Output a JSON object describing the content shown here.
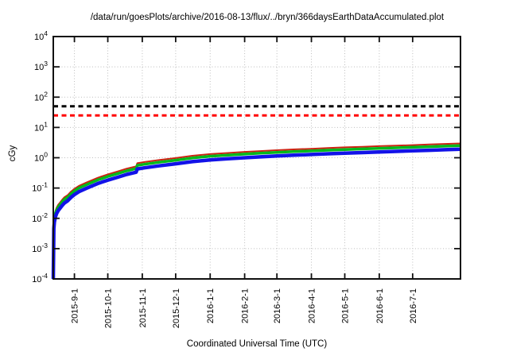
{
  "page": {
    "background": "#ffffff"
  },
  "chart_data": {
    "type": "line",
    "title": "/data/run/goesPlots/archive/2016-08-13/flux/../bryn/366daysEarthDataAccumulated.plot",
    "xlabel": "Coordinated Universal Time (UTC)",
    "ylabel": "cGy",
    "y_scale": "log",
    "ylim": [
      0.0001,
      10000
    ],
    "y_tick_exponents": [
      4,
      3,
      2,
      1,
      0,
      -1,
      -2,
      -3,
      -4
    ],
    "x_range_days": [
      0,
      366
    ],
    "x_ticks": [
      {
        "label": "2015-9-1",
        "day": 19
      },
      {
        "label": "2015-10-1",
        "day": 49
      },
      {
        "label": "2015-11-1",
        "day": 80
      },
      {
        "label": "2015-12-1",
        "day": 110
      },
      {
        "label": "2016-1-1",
        "day": 141
      },
      {
        "label": "2016-2-1",
        "day": 172
      },
      {
        "label": "2016-3-1",
        "day": 201
      },
      {
        "label": "2016-4-1",
        "day": 232
      },
      {
        "label": "2016-5-1",
        "day": 262
      },
      {
        "label": "2016-6-1",
        "day": 293
      },
      {
        "label": "2016-7-1",
        "day": 323
      }
    ],
    "grid": true,
    "legend": "none",
    "colors": {
      "grid": "#bdbdbd",
      "frame": "#111111",
      "threshold_black": "#000000",
      "threshold_red": "#ff0000",
      "series_red": "#cc2211",
      "series_green": "#00b81c",
      "series_blue": "#1212e8"
    },
    "thresholds": [
      {
        "name": "black-limit",
        "value": 50,
        "color": "#000000",
        "style": "dashed"
      },
      {
        "name": "red-limit",
        "value": 25,
        "color": "#ff0000",
        "style": "dashed"
      }
    ],
    "series": [
      {
        "name": "red",
        "color": "#cc2211",
        "points": [
          [
            0,
            0.00012
          ],
          [
            0.5,
            0.0071
          ],
          [
            1,
            0.0118
          ],
          [
            2,
            0.0177
          ],
          [
            3,
            0.0224
          ],
          [
            4.5,
            0.0283
          ],
          [
            6,
            0.033
          ],
          [
            8,
            0.0413
          ],
          [
            10,
            0.0496
          ],
          [
            13,
            0.059
          ],
          [
            16,
            0.0767
          ],
          [
            19,
            0.0944
          ],
          [
            23,
            0.118
          ],
          [
            30,
            0.153
          ],
          [
            40,
            0.218
          ],
          [
            49,
            0.283
          ],
          [
            58,
            0.354
          ],
          [
            66,
            0.437
          ],
          [
            74.5,
            0.519
          ],
          [
            75.5,
            0.661
          ],
          [
            82,
            0.72
          ],
          [
            95,
            0.838
          ],
          [
            110,
            0.979
          ],
          [
            125,
            1.16
          ],
          [
            141,
            1.32
          ],
          [
            157,
            1.44
          ],
          [
            172,
            1.56
          ],
          [
            186,
            1.66
          ],
          [
            201,
            1.77
          ],
          [
            216,
            1.88
          ],
          [
            232,
            1.98
          ],
          [
            247,
            2.09
          ],
          [
            262,
            2.2
          ],
          [
            278,
            2.3
          ],
          [
            293,
            2.41
          ],
          [
            308,
            2.51
          ],
          [
            323,
            2.62
          ],
          [
            338,
            2.74
          ],
          [
            352,
            2.86
          ],
          [
            366,
            2.97
          ]
        ]
      },
      {
        "name": "green",
        "color": "#00b81c",
        "points": [
          [
            0,
            0.0001
          ],
          [
            0.5,
            0.006
          ],
          [
            1,
            0.01
          ],
          [
            2,
            0.015
          ],
          [
            3,
            0.019
          ],
          [
            4.5,
            0.024
          ],
          [
            6,
            0.028
          ],
          [
            8,
            0.035
          ],
          [
            10,
            0.042
          ],
          [
            13,
            0.05
          ],
          [
            16,
            0.065
          ],
          [
            19,
            0.08
          ],
          [
            23,
            0.1
          ],
          [
            30,
            0.13
          ],
          [
            40,
            0.185
          ],
          [
            49,
            0.24
          ],
          [
            58,
            0.3
          ],
          [
            66,
            0.37
          ],
          [
            74.5,
            0.44
          ],
          [
            75.5,
            0.56
          ],
          [
            82,
            0.61
          ],
          [
            95,
            0.71
          ],
          [
            110,
            0.83
          ],
          [
            125,
            0.98
          ],
          [
            141,
            1.12
          ],
          [
            157,
            1.22
          ],
          [
            172,
            1.32
          ],
          [
            186,
            1.41
          ],
          [
            201,
            1.5
          ],
          [
            216,
            1.59
          ],
          [
            232,
            1.68
          ],
          [
            247,
            1.77
          ],
          [
            262,
            1.86
          ],
          [
            278,
            1.95
          ],
          [
            293,
            2.04
          ],
          [
            308,
            2.13
          ],
          [
            323,
            2.22
          ],
          [
            338,
            2.32
          ],
          [
            352,
            2.42
          ],
          [
            366,
            2.52
          ]
        ]
      },
      {
        "name": "blue",
        "color": "#1212e8",
        "points": [
          [
            0,
            0.0001
          ],
          [
            0.5,
            0.0046
          ],
          [
            1,
            0.0076
          ],
          [
            2,
            0.0114
          ],
          [
            3,
            0.0144
          ],
          [
            4.5,
            0.0182
          ],
          [
            6,
            0.0213
          ],
          [
            8,
            0.0266
          ],
          [
            10,
            0.0319
          ],
          [
            13,
            0.038
          ],
          [
            16,
            0.0494
          ],
          [
            19,
            0.0608
          ],
          [
            23,
            0.076
          ],
          [
            30,
            0.0988
          ],
          [
            40,
            0.141
          ],
          [
            49,
            0.182
          ],
          [
            58,
            0.228
          ],
          [
            66,
            0.281
          ],
          [
            74.5,
            0.334
          ],
          [
            75.5,
            0.426
          ],
          [
            82,
            0.464
          ],
          [
            95,
            0.54
          ],
          [
            110,
            0.631
          ],
          [
            125,
            0.745
          ],
          [
            141,
            0.851
          ],
          [
            157,
            0.927
          ],
          [
            172,
            1.0
          ],
          [
            186,
            1.07
          ],
          [
            201,
            1.14
          ],
          [
            216,
            1.21
          ],
          [
            232,
            1.28
          ],
          [
            247,
            1.35
          ],
          [
            262,
            1.41
          ],
          [
            278,
            1.48
          ],
          [
            293,
            1.55
          ],
          [
            308,
            1.62
          ],
          [
            323,
            1.69
          ],
          [
            338,
            1.76
          ],
          [
            352,
            1.84
          ],
          [
            366,
            1.92
          ]
        ]
      }
    ]
  }
}
